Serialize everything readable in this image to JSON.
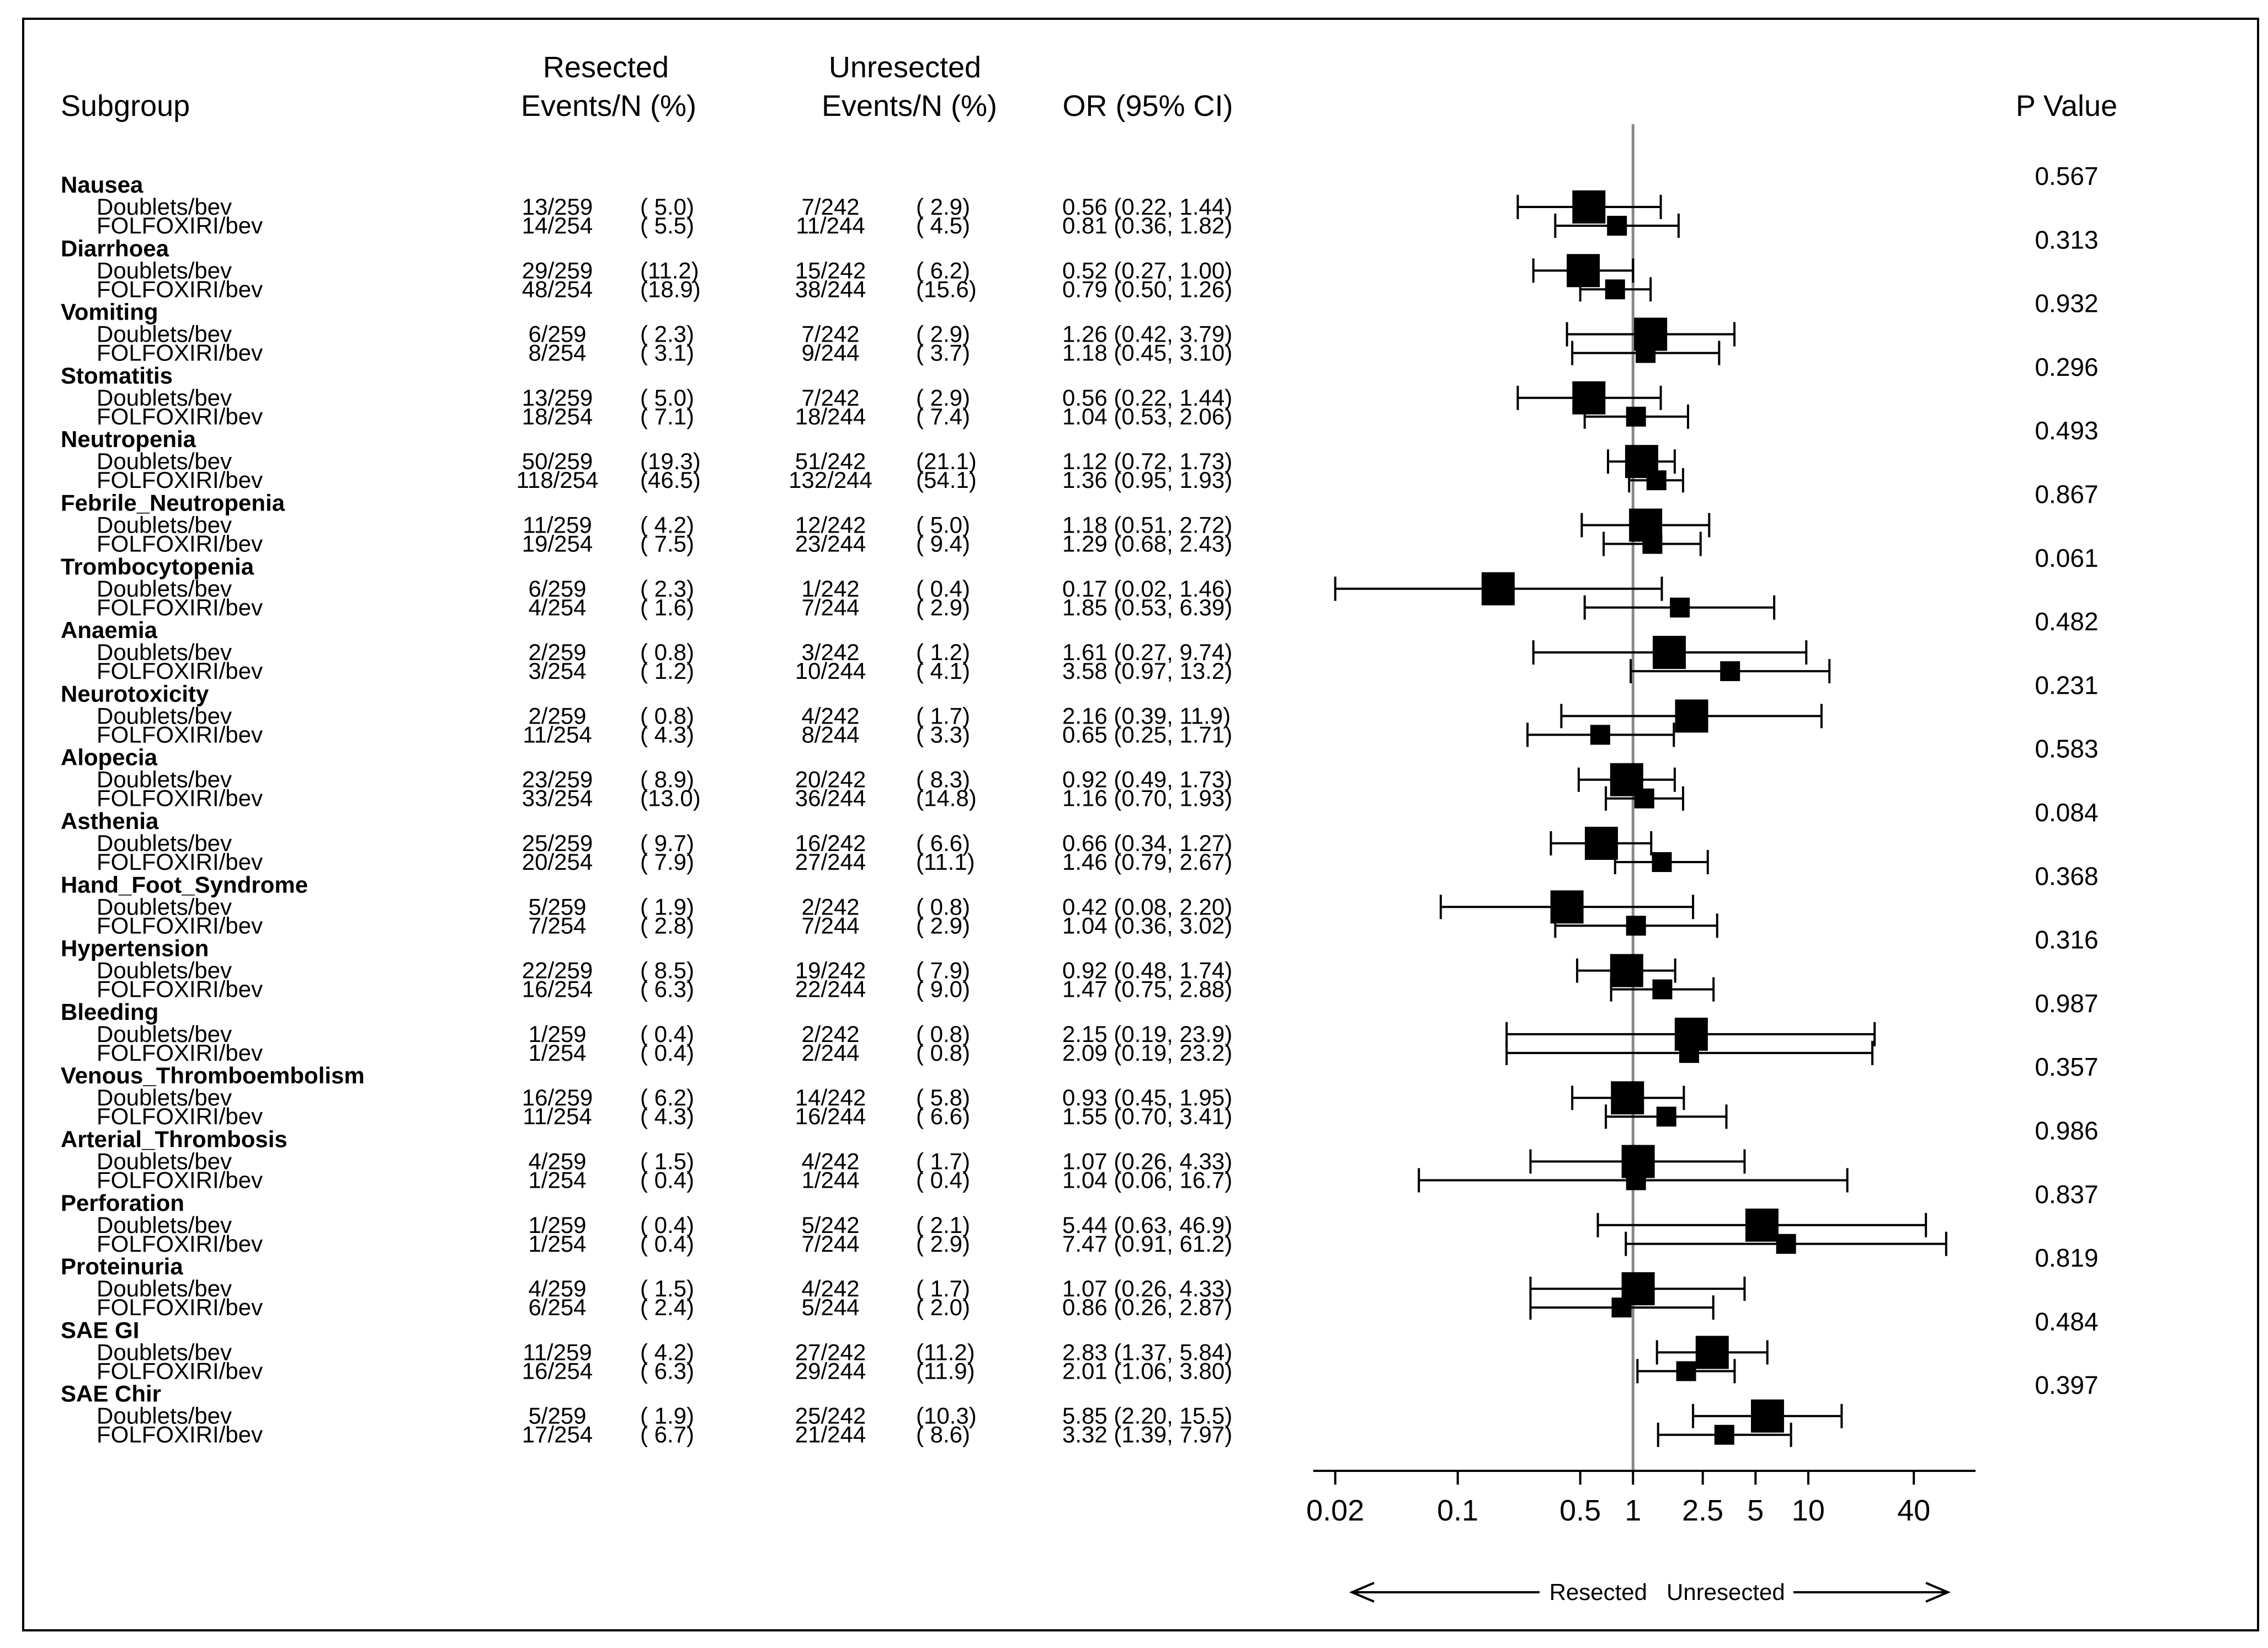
{
  "chart_data": {
    "type": "forest",
    "x_scale": "log",
    "xlim": [
      0.015,
      90
    ],
    "x_ticks": [
      "0.02",
      "0.1",
      "0.5",
      "1",
      "2.5",
      "5",
      "10",
      "40"
    ],
    "reference_line": 1,
    "columns": {
      "subgroup": "Subgroup",
      "resected_top": "Resected",
      "resected_bottom": "Events/N (%)",
      "unresected_top": "Unresected",
      "unresected_bottom": "Events/N (%)",
      "or": "OR (95% CI)",
      "p": "P Value"
    },
    "direction_labels": {
      "left": "Resected",
      "right": "Unresected"
    },
    "groups": [
      {
        "name": "Nausea",
        "p": "0.567",
        "rows": [
          {
            "label": "Doublets/bev",
            "res_n": "13/259",
            "res_pct": "( 5.0)",
            "unres_n": "7/242",
            "unres_pct": "( 2.9)",
            "or_text": "0.56 (0.22, 1.44)",
            "or": 0.56,
            "lo": 0.22,
            "hi": 1.44,
            "size": 1
          },
          {
            "label": "FOLFOXIRI/bev",
            "res_n": "14/254",
            "res_pct": "( 5.5)",
            "unres_n": "11/244",
            "unres_pct": "( 4.5)",
            "or_text": "0.81 (0.36, 1.82)",
            "or": 0.81,
            "lo": 0.36,
            "hi": 1.82,
            "size": 0.6
          }
        ]
      },
      {
        "name": "Diarrhoea",
        "p": "0.313",
        "rows": [
          {
            "label": "Doublets/bev",
            "res_n": "29/259",
            "res_pct": "(11.2)",
            "unres_n": "15/242",
            "unres_pct": "( 6.2)",
            "or_text": "0.52 (0.27, 1.00)",
            "or": 0.52,
            "lo": 0.27,
            "hi": 1.0,
            "size": 1
          },
          {
            "label": "FOLFOXIRI/bev",
            "res_n": "48/254",
            "res_pct": "(18.9)",
            "unres_n": "38/244",
            "unres_pct": "(15.6)",
            "or_text": "0.79 (0.50, 1.26)",
            "or": 0.79,
            "lo": 0.5,
            "hi": 1.26,
            "size": 0.6
          }
        ]
      },
      {
        "name": "Vomiting",
        "p": "0.932",
        "rows": [
          {
            "label": "Doublets/bev",
            "res_n": "6/259",
            "res_pct": "( 2.3)",
            "unres_n": "7/242",
            "unres_pct": "( 2.9)",
            "or_text": "1.26 (0.42, 3.79)",
            "or": 1.26,
            "lo": 0.42,
            "hi": 3.79,
            "size": 1
          },
          {
            "label": "FOLFOXIRI/bev",
            "res_n": "8/254",
            "res_pct": "( 3.1)",
            "unres_n": "9/244",
            "unres_pct": "( 3.7)",
            "or_text": "1.18 (0.45, 3.10)",
            "or": 1.18,
            "lo": 0.45,
            "hi": 3.1,
            "size": 0.6
          }
        ]
      },
      {
        "name": "Stomatitis",
        "p": "0.296",
        "rows": [
          {
            "label": "Doublets/bev",
            "res_n": "13/259",
            "res_pct": "( 5.0)",
            "unres_n": "7/242",
            "unres_pct": "( 2.9)",
            "or_text": "0.56 (0.22, 1.44)",
            "or": 0.56,
            "lo": 0.22,
            "hi": 1.44,
            "size": 1
          },
          {
            "label": "FOLFOXIRI/bev",
            "res_n": "18/254",
            "res_pct": "( 7.1)",
            "unres_n": "18/244",
            "unres_pct": "( 7.4)",
            "or_text": "1.04 (0.53, 2.06)",
            "or": 1.04,
            "lo": 0.53,
            "hi": 2.06,
            "size": 0.6
          }
        ]
      },
      {
        "name": "Neutropenia",
        "p": "0.493",
        "rows": [
          {
            "label": "Doublets/bev",
            "res_n": "50/259",
            "res_pct": "(19.3)",
            "unres_n": "51/242",
            "unres_pct": "(21.1)",
            "or_text": "1.12 (0.72, 1.73)",
            "or": 1.12,
            "lo": 0.72,
            "hi": 1.73,
            "size": 1
          },
          {
            "label": "FOLFOXIRI/bev",
            "res_n": "118/254",
            "res_pct": "(46.5)",
            "unres_n": "132/244",
            "unres_pct": "(54.1)",
            "or_text": "1.36 (0.95, 1.93)",
            "or": 1.36,
            "lo": 0.95,
            "hi": 1.93,
            "size": 0.6
          }
        ]
      },
      {
        "name": "Febrile_Neutropenia",
        "p": "0.867",
        "rows": [
          {
            "label": "Doublets/bev",
            "res_n": "11/259",
            "res_pct": "( 4.2)",
            "unres_n": "12/242",
            "unres_pct": "( 5.0)",
            "or_text": "1.18 (0.51, 2.72)",
            "or": 1.18,
            "lo": 0.51,
            "hi": 2.72,
            "size": 1
          },
          {
            "label": "FOLFOXIRI/bev",
            "res_n": "19/254",
            "res_pct": "( 7.5)",
            "unres_n": "23/244",
            "unres_pct": "( 9.4)",
            "or_text": "1.29 (0.68, 2.43)",
            "or": 1.29,
            "lo": 0.68,
            "hi": 2.43,
            "size": 0.6
          }
        ]
      },
      {
        "name": "Trombocytopenia",
        "p": "0.061",
        "rows": [
          {
            "label": "Doublets/bev",
            "res_n": "6/259",
            "res_pct": "( 2.3)",
            "unres_n": "1/242",
            "unres_pct": "( 0.4)",
            "or_text": "0.17 (0.02, 1.46)",
            "or": 0.17,
            "lo": 0.02,
            "hi": 1.46,
            "size": 1
          },
          {
            "label": "FOLFOXIRI/bev",
            "res_n": "4/254",
            "res_pct": "( 1.6)",
            "unres_n": "7/244",
            "unres_pct": "( 2.9)",
            "or_text": "1.85 (0.53, 6.39)",
            "or": 1.85,
            "lo": 0.53,
            "hi": 6.39,
            "size": 0.6
          }
        ]
      },
      {
        "name": "Anaemia",
        "p": "0.482",
        "rows": [
          {
            "label": "Doublets/bev",
            "res_n": "2/259",
            "res_pct": "( 0.8)",
            "unres_n": "3/242",
            "unres_pct": "( 1.2)",
            "or_text": "1.61 (0.27, 9.74)",
            "or": 1.61,
            "lo": 0.27,
            "hi": 9.74,
            "size": 1
          },
          {
            "label": "FOLFOXIRI/bev",
            "res_n": "3/254",
            "res_pct": "( 1.2)",
            "unres_n": "10/244",
            "unres_pct": "( 4.1)",
            "or_text": "3.58 (0.97, 13.2)",
            "or": 3.58,
            "lo": 0.97,
            "hi": 13.2,
            "size": 0.6
          }
        ]
      },
      {
        "name": "Neurotoxicity",
        "p": "0.231",
        "rows": [
          {
            "label": "Doublets/bev",
            "res_n": "2/259",
            "res_pct": "( 0.8)",
            "unres_n": "4/242",
            "unres_pct": "( 1.7)",
            "or_text": "2.16 (0.39, 11.9)",
            "or": 2.16,
            "lo": 0.39,
            "hi": 11.9,
            "size": 1
          },
          {
            "label": "FOLFOXIRI/bev",
            "res_n": "11/254",
            "res_pct": "( 4.3)",
            "unres_n": "8/244",
            "unres_pct": "( 3.3)",
            "or_text": "0.65 (0.25, 1.71)",
            "or": 0.65,
            "lo": 0.25,
            "hi": 1.71,
            "size": 0.6
          }
        ]
      },
      {
        "name": "Alopecia",
        "p": "0.583",
        "rows": [
          {
            "label": "Doublets/bev",
            "res_n": "23/259",
            "res_pct": "( 8.9)",
            "unres_n": "20/242",
            "unres_pct": "( 8.3)",
            "or_text": "0.92 (0.49, 1.73)",
            "or": 0.92,
            "lo": 0.49,
            "hi": 1.73,
            "size": 1
          },
          {
            "label": "FOLFOXIRI/bev",
            "res_n": "33/254",
            "res_pct": "(13.0)",
            "unres_n": "36/244",
            "unres_pct": "(14.8)",
            "or_text": "1.16 (0.70, 1.93)",
            "or": 1.16,
            "lo": 0.7,
            "hi": 1.93,
            "size": 0.6
          }
        ]
      },
      {
        "name": "Asthenia",
        "p": "0.084",
        "rows": [
          {
            "label": "Doublets/bev",
            "res_n": "25/259",
            "res_pct": "( 9.7)",
            "unres_n": "16/242",
            "unres_pct": "( 6.6)",
            "or_text": "0.66 (0.34, 1.27)",
            "or": 0.66,
            "lo": 0.34,
            "hi": 1.27,
            "size": 1
          },
          {
            "label": "FOLFOXIRI/bev",
            "res_n": "20/254",
            "res_pct": "( 7.9)",
            "unres_n": "27/244",
            "unres_pct": "(11.1)",
            "or_text": "1.46 (0.79, 2.67)",
            "or": 1.46,
            "lo": 0.79,
            "hi": 2.67,
            "size": 0.6
          }
        ]
      },
      {
        "name": "Hand_Foot_Syndrome",
        "p": "0.368",
        "rows": [
          {
            "label": "Doublets/bev",
            "res_n": "5/259",
            "res_pct": "( 1.9)",
            "unres_n": "2/242",
            "unres_pct": "( 0.8)",
            "or_text": "0.42 (0.08, 2.20)",
            "or": 0.42,
            "lo": 0.08,
            "hi": 2.2,
            "size": 1
          },
          {
            "label": "FOLFOXIRI/bev",
            "res_n": "7/254",
            "res_pct": "( 2.8)",
            "unres_n": "7/244",
            "unres_pct": "( 2.9)",
            "or_text": "1.04 (0.36, 3.02)",
            "or": 1.04,
            "lo": 0.36,
            "hi": 3.02,
            "size": 0.6
          }
        ]
      },
      {
        "name": "Hypertension",
        "p": "0.316",
        "rows": [
          {
            "label": "Doublets/bev",
            "res_n": "22/259",
            "res_pct": "( 8.5)",
            "unres_n": "19/242",
            "unres_pct": "( 7.9)",
            "or_text": "0.92 (0.48, 1.74)",
            "or": 0.92,
            "lo": 0.48,
            "hi": 1.74,
            "size": 1
          },
          {
            "label": "FOLFOXIRI/bev",
            "res_n": "16/254",
            "res_pct": "( 6.3)",
            "unres_n": "22/244",
            "unres_pct": "( 9.0)",
            "or_text": "1.47 (0.75, 2.88)",
            "or": 1.47,
            "lo": 0.75,
            "hi": 2.88,
            "size": 0.6
          }
        ]
      },
      {
        "name": "Bleeding",
        "p": "0.987",
        "rows": [
          {
            "label": "Doublets/bev",
            "res_n": "1/259",
            "res_pct": "( 0.4)",
            "unres_n": "2/242",
            "unres_pct": "( 0.8)",
            "or_text": "2.15 (0.19, 23.9)",
            "or": 2.15,
            "lo": 0.19,
            "hi": 23.9,
            "size": 1
          },
          {
            "label": "FOLFOXIRI/bev",
            "res_n": "1/254",
            "res_pct": "( 0.4)",
            "unres_n": "2/244",
            "unres_pct": "( 0.8)",
            "or_text": "2.09 (0.19, 23.2)",
            "or": 2.09,
            "lo": 0.19,
            "hi": 23.2,
            "size": 0.6
          }
        ]
      },
      {
        "name": "Venous_Thromboembolism",
        "p": "0.357",
        "rows": [
          {
            "label": "Doublets/bev",
            "res_n": "16/259",
            "res_pct": "( 6.2)",
            "unres_n": "14/242",
            "unres_pct": "( 5.8)",
            "or_text": "0.93 (0.45, 1.95)",
            "or": 0.93,
            "lo": 0.45,
            "hi": 1.95,
            "size": 1
          },
          {
            "label": "FOLFOXIRI/bev",
            "res_n": "11/254",
            "res_pct": "( 4.3)",
            "unres_n": "16/244",
            "unres_pct": "( 6.6)",
            "or_text": "1.55 (0.70, 3.41)",
            "or": 1.55,
            "lo": 0.7,
            "hi": 3.41,
            "size": 0.6
          }
        ]
      },
      {
        "name": "Arterial_Thrombosis",
        "p": "0.986",
        "rows": [
          {
            "label": "Doublets/bev",
            "res_n": "4/259",
            "res_pct": "( 1.5)",
            "unres_n": "4/242",
            "unres_pct": "( 1.7)",
            "or_text": "1.07 (0.26, 4.33)",
            "or": 1.07,
            "lo": 0.26,
            "hi": 4.33,
            "size": 1
          },
          {
            "label": "FOLFOXIRI/bev",
            "res_n": "1/254",
            "res_pct": "( 0.4)",
            "unres_n": "1/244",
            "unres_pct": "( 0.4)",
            "or_text": "1.04 (0.06, 16.7)",
            "or": 1.04,
            "lo": 0.06,
            "hi": 16.7,
            "size": 0.6
          }
        ]
      },
      {
        "name": "Perforation",
        "p": "0.837",
        "rows": [
          {
            "label": "Doublets/bev",
            "res_n": "1/259",
            "res_pct": "( 0.4)",
            "unres_n": "5/242",
            "unres_pct": "( 2.1)",
            "or_text": "5.44 (0.63, 46.9)",
            "or": 5.44,
            "lo": 0.63,
            "hi": 46.9,
            "size": 1
          },
          {
            "label": "FOLFOXIRI/bev",
            "res_n": "1/254",
            "res_pct": "( 0.4)",
            "unres_n": "7/244",
            "unres_pct": "( 2.9)",
            "or_text": "7.47 (0.91, 61.2)",
            "or": 7.47,
            "lo": 0.91,
            "hi": 61.2,
            "size": 0.6
          }
        ]
      },
      {
        "name": "Proteinuria",
        "p": "0.819",
        "rows": [
          {
            "label": "Doublets/bev",
            "res_n": "4/259",
            "res_pct": "( 1.5)",
            "unres_n": "4/242",
            "unres_pct": "( 1.7)",
            "or_text": "1.07 (0.26, 4.33)",
            "or": 1.07,
            "lo": 0.26,
            "hi": 4.33,
            "size": 1
          },
          {
            "label": "FOLFOXIRI/bev",
            "res_n": "6/254",
            "res_pct": "( 2.4)",
            "unres_n": "5/244",
            "unres_pct": "( 2.0)",
            "or_text": "0.86 (0.26, 2.87)",
            "or": 0.86,
            "lo": 0.26,
            "hi": 2.87,
            "size": 0.6
          }
        ]
      },
      {
        "name": "SAE GI",
        "p": "0.484",
        "rows": [
          {
            "label": "Doublets/bev",
            "res_n": "11/259",
            "res_pct": "( 4.2)",
            "unres_n": "27/242",
            "unres_pct": "(11.2)",
            "or_text": "2.83 (1.37, 5.84)",
            "or": 2.83,
            "lo": 1.37,
            "hi": 5.84,
            "size": 1
          },
          {
            "label": "FOLFOXIRI/bev",
            "res_n": "16/254",
            "res_pct": "( 6.3)",
            "unres_n": "29/244",
            "unres_pct": "(11.9)",
            "or_text": "2.01 (1.06, 3.80)",
            "or": 2.01,
            "lo": 1.06,
            "hi": 3.8,
            "size": 0.6
          }
        ]
      },
      {
        "name": "SAE Chir",
        "p": "0.397",
        "rows": [
          {
            "label": "Doublets/bev",
            "res_n": "5/259",
            "res_pct": "( 1.9)",
            "unres_n": "25/242",
            "unres_pct": "(10.3)",
            "or_text": "5.85 (2.20, 15.5)",
            "or": 5.85,
            "lo": 2.2,
            "hi": 15.5,
            "size": 1
          },
          {
            "label": "FOLFOXIRI/bev",
            "res_n": "17/254",
            "res_pct": "( 6.7)",
            "unres_n": "21/244",
            "unres_pct": "( 8.6)",
            "or_text": "3.32 (1.39, 7.97)",
            "or": 3.32,
            "lo": 1.39,
            "hi": 7.97,
            "size": 0.6
          }
        ]
      }
    ]
  }
}
